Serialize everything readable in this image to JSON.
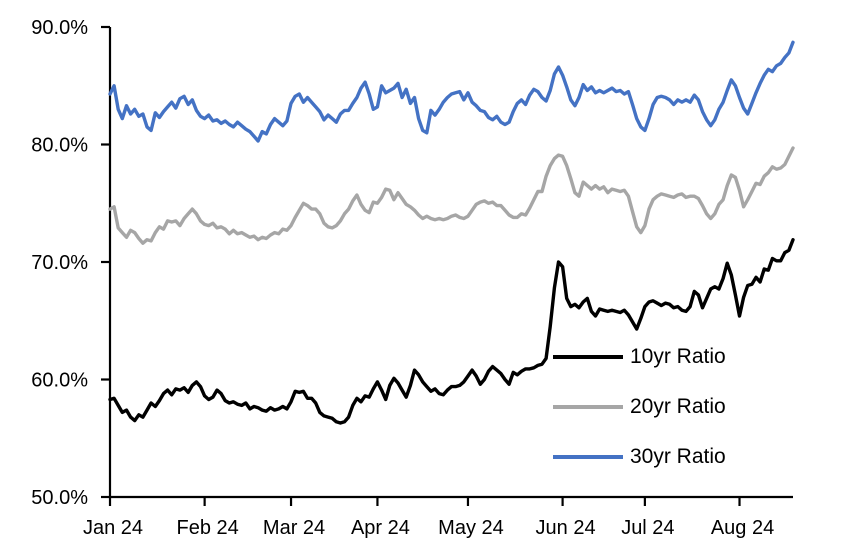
{
  "chart_data": {
    "type": "line",
    "title": "",
    "xlabel": "",
    "ylabel": "",
    "grid": false,
    "legend_position": "inside-lower-right",
    "x_axis": {
      "tick_labels": [
        "Jan 24",
        "Feb 24",
        "Mar 24",
        "Apr 24",
        "May 24",
        "Jun 24",
        "Jul 24",
        "Aug 24"
      ],
      "month_start_indices": [
        0,
        23,
        44,
        65,
        87,
        110,
        130,
        153
      ],
      "points_per_series": 167,
      "note": "daily (weekday) observations Jan 2024 through mid-August 2024"
    },
    "y_axis": {
      "min": 50,
      "max": 90,
      "tick_values": [
        50,
        60,
        70,
        80,
        90
      ],
      "tick_labels": [
        "50.0%",
        "60.0%",
        "70.0%",
        "80.0%",
        "90.0%"
      ]
    },
    "axis_color": "#000000",
    "series": [
      {
        "name": "10yr Ratio",
        "color": "#000000",
        "values": [
          58.3,
          58.4,
          57.8,
          57.2,
          57.4,
          56.8,
          56.5,
          57.0,
          56.8,
          57.4,
          58.0,
          57.7,
          58.2,
          58.8,
          59.1,
          58.7,
          59.2,
          59.1,
          59.3,
          58.9,
          59.5,
          59.8,
          59.4,
          58.6,
          58.3,
          58.5,
          59.1,
          58.8,
          58.2,
          58.0,
          58.1,
          57.9,
          57.8,
          58.0,
          57.5,
          57.7,
          57.6,
          57.4,
          57.3,
          57.6,
          57.4,
          57.5,
          57.7,
          57.5,
          58.1,
          59.0,
          58.9,
          59.0,
          58.4,
          58.4,
          58.0,
          57.2,
          56.9,
          56.8,
          56.7,
          56.4,
          56.3,
          56.4,
          56.8,
          57.8,
          58.4,
          58.1,
          58.6,
          58.5,
          59.2,
          59.8,
          59.1,
          58.3,
          59.5,
          60.1,
          59.7,
          59.1,
          58.5,
          59.5,
          60.8,
          60.4,
          59.8,
          59.4,
          59.0,
          59.2,
          58.8,
          58.7,
          59.1,
          59.4,
          59.4,
          59.5,
          59.8,
          60.3,
          60.8,
          60.3,
          59.6,
          60.0,
          60.7,
          61.1,
          60.8,
          60.5,
          60.0,
          59.6,
          60.6,
          60.4,
          60.7,
          60.9,
          60.9,
          61.0,
          61.2,
          61.3,
          61.8,
          64.5,
          67.8,
          70.0,
          69.6,
          66.9,
          66.2,
          66.4,
          66.1,
          66.6,
          66.9,
          65.8,
          65.4,
          66.0,
          65.9,
          65.8,
          65.9,
          65.8,
          65.7,
          65.9,
          65.5,
          64.9,
          64.3,
          65.2,
          66.2,
          66.6,
          66.7,
          66.5,
          66.3,
          66.5,
          66.4,
          66.1,
          66.2,
          65.9,
          65.8,
          66.2,
          67.5,
          67.2,
          66.1,
          66.9,
          67.7,
          67.9,
          67.7,
          68.6,
          69.9,
          68.9,
          67.2,
          65.4,
          67.0,
          68.0,
          68.1,
          68.7,
          68.3,
          69.4,
          69.3,
          70.3,
          70.1,
          70.1,
          70.8,
          71.0,
          71.9
        ]
      },
      {
        "name": "20yr Ratio",
        "color": "#A6A6A6",
        "values": [
          74.5,
          74.7,
          72.9,
          72.5,
          72.1,
          72.7,
          72.5,
          72.0,
          71.6,
          71.9,
          71.8,
          72.5,
          73.0,
          72.8,
          73.5,
          73.4,
          73.5,
          73.1,
          73.7,
          74.1,
          74.5,
          74.1,
          73.5,
          73.2,
          73.1,
          73.3,
          72.9,
          73.0,
          72.8,
          72.4,
          72.7,
          72.4,
          72.5,
          72.3,
          72.1,
          72.2,
          71.9,
          72.1,
          72.0,
          72.3,
          72.5,
          72.4,
          72.8,
          72.7,
          73.1,
          73.8,
          74.4,
          75.0,
          74.8,
          74.5,
          74.5,
          74.1,
          73.3,
          73.0,
          72.9,
          73.1,
          73.5,
          74.1,
          74.5,
          75.2,
          75.7,
          74.9,
          74.4,
          74.2,
          75.1,
          75.0,
          75.5,
          76.2,
          76.1,
          75.3,
          75.9,
          75.4,
          74.9,
          74.7,
          74.4,
          74.0,
          73.7,
          73.9,
          73.7,
          73.6,
          73.7,
          73.6,
          73.7,
          73.9,
          74.0,
          73.8,
          73.7,
          73.9,
          74.4,
          74.9,
          75.1,
          75.2,
          75.0,
          75.1,
          74.8,
          74.8,
          74.4,
          74.0,
          73.8,
          73.8,
          74.1,
          74.0,
          74.6,
          75.3,
          76.0,
          76.0,
          77.3,
          78.2,
          78.8,
          79.1,
          79.0,
          78.2,
          77.1,
          75.9,
          75.6,
          76.8,
          76.5,
          76.2,
          76.5,
          76.2,
          76.4,
          75.9,
          76.2,
          76.1,
          76.0,
          76.1,
          75.6,
          74.3,
          73.0,
          72.5,
          73.1,
          74.5,
          75.3,
          75.6,
          75.8,
          75.7,
          75.6,
          75.5,
          75.7,
          75.8,
          75.5,
          75.6,
          75.6,
          75.4,
          74.8,
          74.1,
          73.7,
          74.1,
          74.9,
          75.3,
          76.5,
          77.4,
          77.2,
          76.1,
          74.7,
          75.3,
          76.0,
          76.7,
          76.6,
          77.3,
          77.6,
          78.1,
          77.9,
          78.0,
          78.3,
          79.0,
          79.7
        ]
      },
      {
        "name": "30yr Ratio",
        "color": "#4472C4",
        "values": [
          84.3,
          85.0,
          83.0,
          82.2,
          83.3,
          82.6,
          83.0,
          82.4,
          82.6,
          81.5,
          81.2,
          82.7,
          82.3,
          82.8,
          83.2,
          83.6,
          83.1,
          83.9,
          84.1,
          83.4,
          83.8,
          82.9,
          82.4,
          82.2,
          82.5,
          82.0,
          82.1,
          81.8,
          82.0,
          81.7,
          81.5,
          81.9,
          81.6,
          81.3,
          81.1,
          80.7,
          80.3,
          81.1,
          80.9,
          81.7,
          82.2,
          81.9,
          81.6,
          82.0,
          83.5,
          84.1,
          84.3,
          83.6,
          84.0,
          83.6,
          83.2,
          82.8,
          82.1,
          82.5,
          82.2,
          81.9,
          82.6,
          82.9,
          82.9,
          83.5,
          84.0,
          84.8,
          85.3,
          84.3,
          83.0,
          83.2,
          85.0,
          84.4,
          84.6,
          84.8,
          85.2,
          84.0,
          84.7,
          83.5,
          84.0,
          82.2,
          81.2,
          81.0,
          82.9,
          82.5,
          83.0,
          83.6,
          84.0,
          84.3,
          84.4,
          84.5,
          83.8,
          84.4,
          83.6,
          83.3,
          82.9,
          82.8,
          82.3,
          82.1,
          82.4,
          81.9,
          81.7,
          81.9,
          82.8,
          83.5,
          83.8,
          83.4,
          84.2,
          84.7,
          84.5,
          84.0,
          83.7,
          84.6,
          86.0,
          86.6,
          85.9,
          84.9,
          83.8,
          83.3,
          84.0,
          85.1,
          84.6,
          84.9,
          84.4,
          84.6,
          84.4,
          84.6,
          84.8,
          84.5,
          84.6,
          84.3,
          84.5,
          83.4,
          82.2,
          81.5,
          81.2,
          82.2,
          83.4,
          84.0,
          84.1,
          84.0,
          83.8,
          83.4,
          83.8,
          83.6,
          83.8,
          83.6,
          84.2,
          83.8,
          82.8,
          82.1,
          81.6,
          82.1,
          83.0,
          83.6,
          84.6,
          85.5,
          85.0,
          84.0,
          83.1,
          82.6,
          83.5,
          84.4,
          85.2,
          85.9,
          86.4,
          86.2,
          86.7,
          86.9,
          87.4,
          87.8,
          88.7
        ]
      }
    ]
  }
}
